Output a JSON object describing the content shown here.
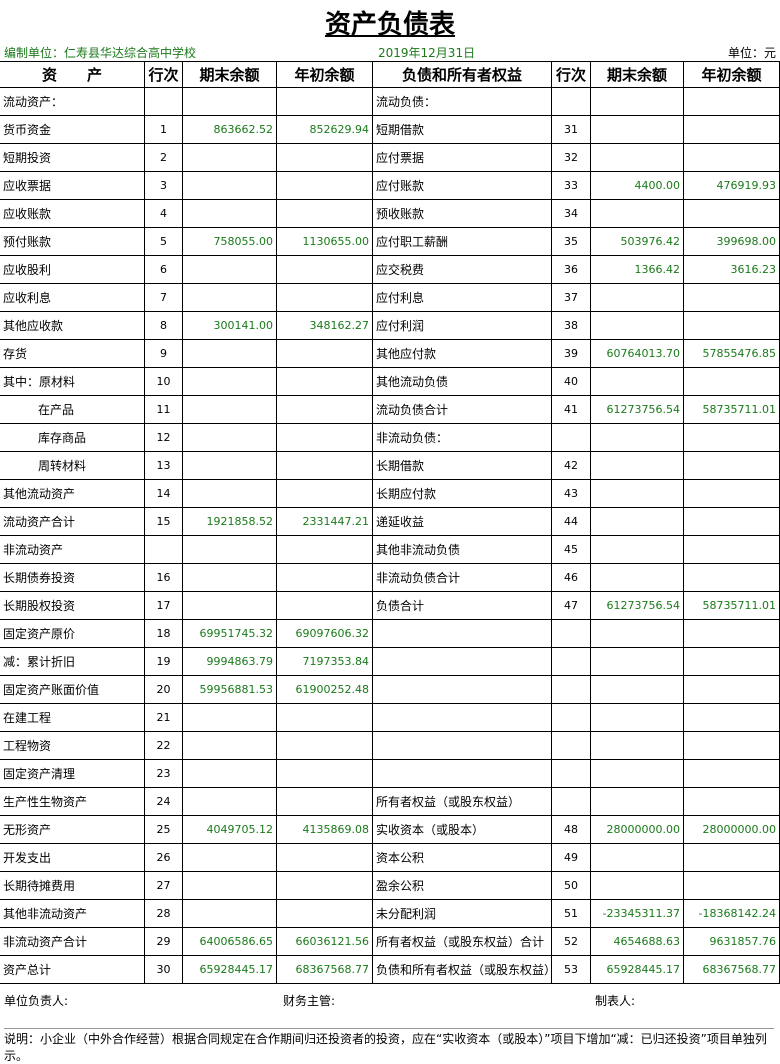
{
  "header": {
    "title": "资产负债表",
    "unit_org": "编制单位：仁寿县华达综合高中学校",
    "date": "2019年12月31日",
    "currency": "单位：元"
  },
  "table": {
    "columns": [
      "资　　产",
      "行次",
      "期末余额",
      "年初余额",
      "负债和所有者权益",
      "行次",
      "期末余额",
      "年初余额"
    ],
    "rows": [
      [
        "流动资产：",
        null,
        null,
        null,
        "流动负债：",
        null,
        null,
        null
      ],
      [
        "货币资金",
        "1",
        "863662.52",
        "852629.94",
        "短期借款",
        "31",
        null,
        null
      ],
      [
        "短期投资",
        "2",
        null,
        null,
        "应付票据",
        "32",
        null,
        null
      ],
      [
        "应收票据",
        "3",
        null,
        null,
        "应付账款",
        "33",
        "4400.00",
        "476919.93"
      ],
      [
        "应收账款",
        "4",
        null,
        null,
        "预收账款",
        "34",
        null,
        null
      ],
      [
        "预付账款",
        "5",
        "758055.00",
        "1130655.00",
        "应付职工薪酬",
        "35",
        "503976.42",
        "399698.00"
      ],
      [
        "应收股利",
        "6",
        null,
        null,
        "应交税费",
        "36",
        "1366.42",
        "3616.23"
      ],
      [
        "应收利息",
        "7",
        null,
        null,
        "应付利息",
        "37",
        null,
        null
      ],
      [
        "其他应收款",
        "8",
        "300141.00",
        "348162.27",
        "应付利润",
        "38",
        null,
        null
      ],
      [
        "存货",
        "9",
        null,
        null,
        "其他应付款",
        "39",
        "60764013.70",
        "57855476.85"
      ],
      [
        "其中：原材料",
        "10",
        null,
        null,
        "其他流动负债",
        "40",
        null,
        null
      ],
      [
        "在产品",
        "11",
        null,
        null,
        "流动负债合计",
        "41",
        "61273756.54",
        "58735711.01"
      ],
      [
        "库存商品",
        "12",
        null,
        null,
        "非流动负债：",
        null,
        null,
        null
      ],
      [
        "周转材料",
        "13",
        null,
        null,
        "长期借款",
        "42",
        null,
        null
      ],
      [
        "其他流动资产",
        "14",
        null,
        null,
        "长期应付款",
        "43",
        null,
        null
      ],
      [
        "流动资产合计",
        "15",
        "1921858.52",
        "2331447.21",
        "递延收益",
        "44",
        null,
        null
      ],
      [
        "非流动资产",
        null,
        null,
        null,
        "其他非流动负债",
        "45",
        null,
        null
      ],
      [
        "长期债券投资",
        "16",
        null,
        null,
        "非流动负债合计",
        "46",
        null,
        null
      ],
      [
        "长期股权投资",
        "17",
        null,
        null,
        "负债合计",
        "47",
        "61273756.54",
        "58735711.01"
      ],
      [
        "固定资产原价",
        "18",
        "69951745.32",
        "69097606.32",
        null,
        null,
        null,
        null
      ],
      [
        "减：累计折旧",
        "19",
        "9994863.79",
        "7197353.84",
        null,
        null,
        null,
        null
      ],
      [
        "固定资产账面价值",
        "20",
        "59956881.53",
        "61900252.48",
        null,
        null,
        null,
        null
      ],
      [
        "在建工程",
        "21",
        null,
        null,
        null,
        null,
        null,
        null
      ],
      [
        "工程物资",
        "22",
        null,
        null,
        null,
        null,
        null,
        null
      ],
      [
        "固定资产清理",
        "23",
        null,
        null,
        null,
        null,
        null,
        null
      ],
      [
        "生产性生物资产",
        "24",
        null,
        null,
        "所有者权益（或股东权益）",
        null,
        null,
        null
      ],
      [
        "无形资产",
        "25",
        "4049705.12",
        "4135869.08",
        "实收资本（或股本）",
        "48",
        "28000000.00",
        "28000000.00"
      ],
      [
        "开发支出",
        "26",
        null,
        null,
        "资本公积",
        "49",
        null,
        null
      ],
      [
        "长期待摊费用",
        "27",
        null,
        null,
        "盈余公积",
        "50",
        null,
        null
      ],
      [
        "其他非流动资产",
        "28",
        null,
        null,
        "未分配利润",
        "51",
        "-23345311.37",
        "-18368142.24"
      ],
      [
        "非流动资产合计",
        "29",
        "64006586.65",
        "66036121.56",
        "所有者权益（或股东权益）合计",
        "52",
        "4654688.63",
        "9631857.76"
      ],
      [
        "资产总计",
        "30",
        "65928445.17",
        "68367568.77",
        "负债和所有者权益（或股东权益）",
        "53",
        "65928445.17",
        "68367568.77"
      ]
    ]
  },
  "footer": {
    "head": "单位负责人:",
    "finance": "财务主管:",
    "preparer": "制表人:",
    "note": "说明：小企业（中外合作经营）根据合同规定在合作期间归还投资者的投资，应在“实收资本（或股本）”项目下增加“减：已归还投资”项目单独列示。"
  }
}
